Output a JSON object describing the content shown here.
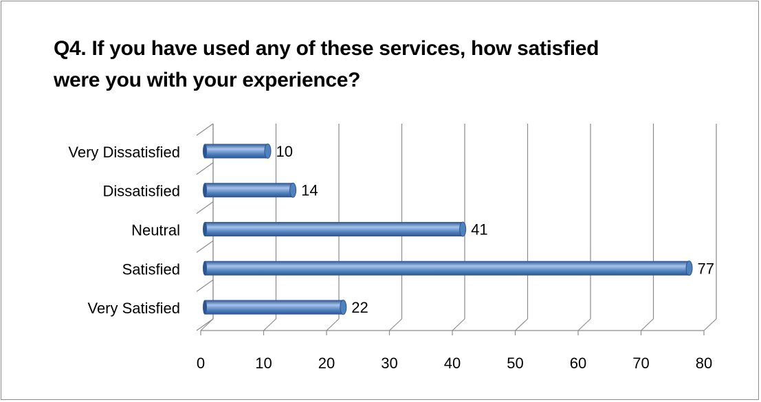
{
  "chart_data": {
    "type": "bar",
    "orientation": "horizontal",
    "title_lines": [
      "Q4. If you have used any of these services, how satisfied",
      "were you with your experience?"
    ],
    "categories": [
      "Very Dissatisfied",
      "Dissatisfied",
      "Neutral",
      "Satisfied",
      "Very Satisfied"
    ],
    "values": [
      10,
      14,
      41,
      77,
      22
    ],
    "xlim": [
      0,
      80
    ],
    "xticks": [
      0,
      10,
      20,
      30,
      40,
      50,
      60,
      70,
      80
    ],
    "grid": true,
    "data_labels": true,
    "bar_color": "#4f81bd",
    "bar_color_dark": "#2b5491",
    "bar_color_light": "#a7c3ea"
  }
}
